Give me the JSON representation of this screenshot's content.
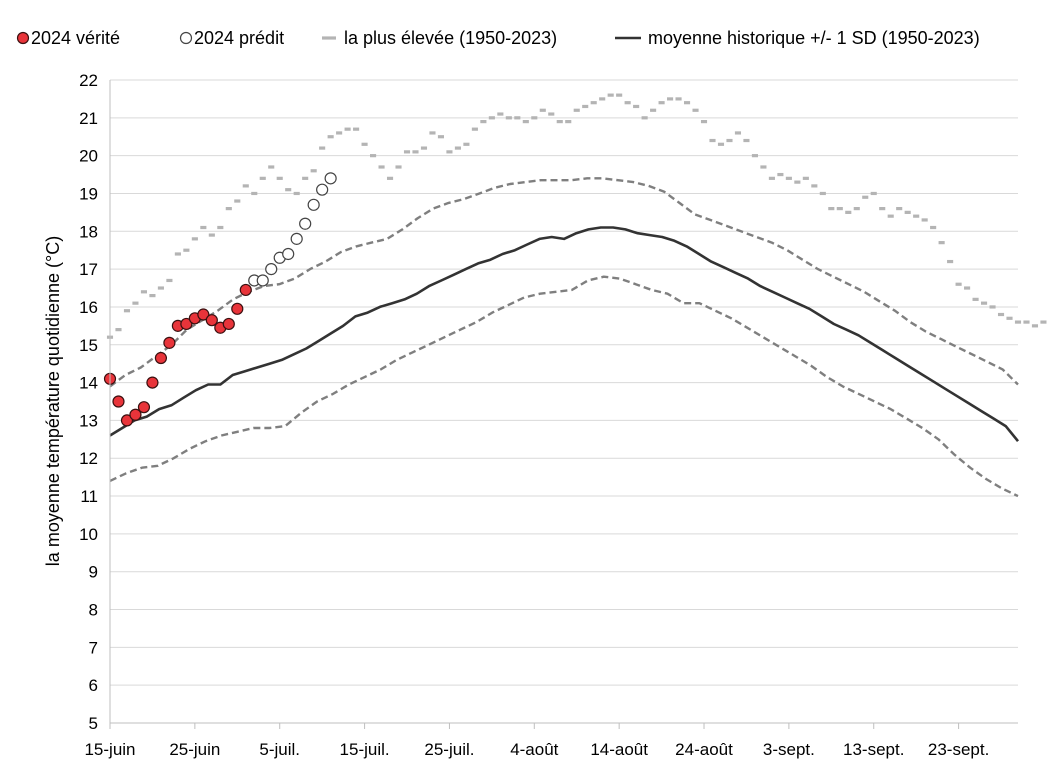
{
  "chart_data": {
    "type": "line",
    "ylabel": "la moyenne température quotidienne (°C)",
    "xlabel": "",
    "ylim": [
      5,
      22
    ],
    "yticks": [
      5,
      6,
      7,
      8,
      9,
      10,
      11,
      12,
      13,
      14,
      15,
      16,
      17,
      18,
      19,
      20,
      21,
      22
    ],
    "x_domain": [
      "2024-06-15",
      "2024-09-30"
    ],
    "x_ticks": [
      {
        "date": "2024-06-15",
        "label": "15-juin"
      },
      {
        "date": "2024-06-25",
        "label": "25-juin"
      },
      {
        "date": "2024-07-05",
        "label": "5-juil."
      },
      {
        "date": "2024-07-15",
        "label": "15-juil."
      },
      {
        "date": "2024-07-25",
        "label": "25-juil."
      },
      {
        "date": "2024-08-04",
        "label": "4-août"
      },
      {
        "date": "2024-08-14",
        "label": "14-août"
      },
      {
        "date": "2024-08-24",
        "label": "24-août"
      },
      {
        "date": "2024-09-03",
        "label": "3-sept."
      },
      {
        "date": "2024-09-13",
        "label": "13-sept."
      },
      {
        "date": "2024-09-23",
        "label": "23-sept."
      }
    ],
    "grid": true,
    "legend_position": "top",
    "legend": [
      {
        "key": "truth",
        "label": "2024 vérité"
      },
      {
        "key": "predicted",
        "label": "2024 prédit"
      },
      {
        "key": "highest",
        "label": "la plus élevée (1950-2023)"
      },
      {
        "key": "mean",
        "label": "moyenne historique +/- 1 SD (1950-2023)"
      }
    ],
    "colors": {
      "truth_fill": "#e8343a",
      "truth_stroke": "#3a1010",
      "predicted_stroke": "#444444",
      "highest": "#b4b4b4",
      "mean": "#333333",
      "sd": "#7f7f7f",
      "grid": "#d9d9d9"
    },
    "series": [
      {
        "name": "2024 vérité",
        "style": "marker-filled",
        "x": [
          "2024-06-15",
          "2024-06-16",
          "2024-06-17",
          "2024-06-18",
          "2024-06-19",
          "2024-06-20",
          "2024-06-21",
          "2024-06-22",
          "2024-06-23",
          "2024-06-24",
          "2024-06-25",
          "2024-06-26",
          "2024-06-27",
          "2024-06-28",
          "2024-06-29",
          "2024-06-30",
          "2024-07-01"
        ],
        "y": [
          14.1,
          13.5,
          13.0,
          13.15,
          13.35,
          14.0,
          14.65,
          15.05,
          15.5,
          15.55,
          15.7,
          15.8,
          15.65,
          15.45,
          15.55,
          15.95,
          16.45
        ]
      },
      {
        "name": "2024 prédit",
        "style": "marker-open",
        "x": [
          "2024-07-02",
          "2024-07-03",
          "2024-07-04",
          "2024-07-05",
          "2024-07-06",
          "2024-07-07",
          "2024-07-08",
          "2024-07-09",
          "2024-07-10",
          "2024-07-11"
        ],
        "y": [
          16.7,
          16.7,
          17.0,
          17.3,
          17.4,
          17.8,
          18.2,
          18.7,
          19.1,
          19.4
        ]
      },
      {
        "name": "la plus élevée (1950-2023)",
        "style": "step-dash",
        "x_start": "2024-06-15",
        "y": [
          15.2,
          15.4,
          15.9,
          16.1,
          16.4,
          16.3,
          16.5,
          16.7,
          17.4,
          17.5,
          17.8,
          18.1,
          17.9,
          18.1,
          18.6,
          18.8,
          19.2,
          19.0,
          19.4,
          19.7,
          19.4,
          19.1,
          19.0,
          19.4,
          19.6,
          20.2,
          20.5,
          20.6,
          20.7,
          20.7,
          20.3,
          20.0,
          19.7,
          19.4,
          19.7,
          20.1,
          20.1,
          20.2,
          20.6,
          20.5,
          20.1,
          20.2,
          20.3,
          20.7,
          20.9,
          21.0,
          21.1,
          21.0,
          21.0,
          20.9,
          21.0,
          21.2,
          21.1,
          20.9,
          20.9,
          21.2,
          21.3,
          21.4,
          21.5,
          21.6,
          21.6,
          21.4,
          21.3,
          21.0,
          21.2,
          21.4,
          21.5,
          21.5,
          21.4,
          21.2,
          20.9,
          20.4,
          20.3,
          20.4,
          20.6,
          20.4,
          20.0,
          19.7,
          19.4,
          19.5,
          19.4,
          19.3,
          19.4,
          19.2,
          19.0,
          18.6,
          18.6,
          18.5,
          18.6,
          18.9,
          19.0,
          18.6,
          18.4,
          18.6,
          18.5,
          18.4,
          18.3,
          18.1,
          17.7,
          17.2,
          16.6,
          16.5,
          16.2,
          16.1,
          16.0,
          15.8,
          15.7,
          15.6,
          15.6,
          15.5,
          15.6
        ]
      },
      {
        "name": "moyenne historique",
        "style": "solid",
        "x_start": "2024-06-15",
        "y": [
          12.6,
          12.8,
          13.0,
          13.1,
          13.3,
          13.4,
          13.6,
          13.8,
          13.95,
          13.95,
          14.2,
          14.3,
          14.4,
          14.5,
          14.6,
          14.75,
          14.9,
          15.1,
          15.3,
          15.5,
          15.75,
          15.85,
          16.0,
          16.1,
          16.2,
          16.35,
          16.55,
          16.7,
          16.85,
          17.0,
          17.15,
          17.25,
          17.4,
          17.5,
          17.65,
          17.8,
          17.85,
          17.8,
          17.95,
          18.05,
          18.1,
          18.1,
          18.05,
          17.95,
          17.9,
          17.85,
          17.75,
          17.6,
          17.4,
          17.2,
          17.05,
          16.9,
          16.75,
          16.55,
          16.4,
          16.25,
          16.1,
          15.95,
          15.75,
          15.55,
          15.4,
          15.25,
          15.05,
          14.85,
          14.65,
          14.45,
          14.25,
          14.05,
          13.85,
          13.65,
          13.45,
          13.25,
          13.05,
          12.85,
          12.45
        ]
      },
      {
        "name": "+1 SD",
        "style": "dash",
        "x_start": "2024-06-15",
        "y": [
          13.9,
          14.2,
          14.4,
          14.7,
          15.0,
          15.4,
          15.65,
          15.9,
          16.2,
          16.4,
          16.55,
          16.6,
          16.75,
          17.0,
          17.2,
          17.45,
          17.6,
          17.7,
          17.8,
          18.05,
          18.35,
          18.6,
          18.75,
          18.85,
          19.0,
          19.15,
          19.25,
          19.3,
          19.35,
          19.35,
          19.35,
          19.4,
          19.4,
          19.35,
          19.3,
          19.2,
          19.05,
          18.75,
          18.45,
          18.3,
          18.15,
          18.0,
          17.85,
          17.7,
          17.5,
          17.25,
          17.0,
          16.8,
          16.6,
          16.4,
          16.15,
          15.9,
          15.6,
          15.35,
          15.15,
          14.95,
          14.75,
          14.55,
          14.35,
          13.95
        ]
      },
      {
        "name": "-1 SD",
        "style": "dash",
        "x_start": "2024-06-15",
        "y": [
          11.4,
          11.6,
          11.75,
          11.8,
          12.0,
          12.25,
          12.45,
          12.6,
          12.7,
          12.8,
          12.8,
          12.85,
          13.2,
          13.5,
          13.7,
          13.95,
          14.15,
          14.35,
          14.6,
          14.8,
          15.0,
          15.2,
          15.4,
          15.6,
          15.85,
          16.05,
          16.25,
          16.35,
          16.4,
          16.45,
          16.7,
          16.8,
          16.75,
          16.6,
          16.45,
          16.35,
          16.1,
          16.1,
          15.9,
          15.7,
          15.45,
          15.2,
          14.95,
          14.7,
          14.45,
          14.15,
          13.9,
          13.7,
          13.5,
          13.3,
          13.05,
          12.8,
          12.5,
          12.1,
          11.75,
          11.45,
          11.2,
          11.0
        ]
      }
    ]
  }
}
